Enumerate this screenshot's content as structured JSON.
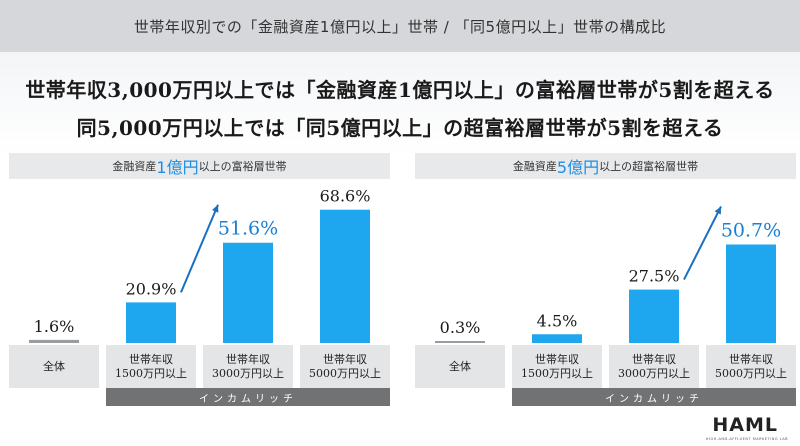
{
  "header": {
    "title": "世帯年収別での「金融資産1億円以上」世帯 / 「同5億円以上」世帯の構成比"
  },
  "headline": {
    "line1": "世帯年収3,000万円以上では「金融資産1億円以上」の富裕層世帯が5割を超える",
    "line2": "同5,000万円以上では「同5億円以上」の超富裕層世帯が5割を超える"
  },
  "panels": [
    {
      "title_pre": "金融資産",
      "title_highlight": "1億円",
      "title_post": "以上の富裕層世帯",
      "income_label": "インカムリッチ"
    },
    {
      "title_pre": "金融資産",
      "title_highlight": "5億円",
      "title_post": "以上の超富裕層世帯",
      "income_label": "インカムリッチ"
    }
  ],
  "categories": [
    {
      "line1": "全体",
      "line2": ""
    },
    {
      "line1": "世帯年収",
      "line2": "1500万円以上"
    },
    {
      "line1": "世帯年収",
      "line2": "3000万円以上"
    },
    {
      "line1": "世帯年収",
      "line2": "5000万円以上"
    }
  ],
  "chart_data": [
    {
      "type": "bar",
      "title": "金融資産1億円以上の富裕層世帯",
      "categories": [
        "全体",
        "世帯年収1500万円以上",
        "世帯年収3000万円以上",
        "世帯年収5000万円以上"
      ],
      "values": [
        1.6,
        20.9,
        51.6,
        68.6
      ],
      "labels": [
        "1.6%",
        "20.9%",
        "51.6%",
        "68.6%"
      ],
      "highlight_index": 2,
      "ylim": [
        0,
        70
      ]
    },
    {
      "type": "bar",
      "title": "金融資産5億円以上の超富裕層世帯",
      "categories": [
        "全体",
        "世帯年収1500万円以上",
        "世帯年収3000万円以上",
        "世帯年収5000万円以上"
      ],
      "values": [
        0.3,
        4.5,
        27.5,
        50.7
      ],
      "labels": [
        "0.3%",
        "4.5%",
        "27.5%",
        "50.7%"
      ],
      "highlight_index": 3,
      "ylim": [
        0,
        70
      ]
    }
  ],
  "colors": {
    "bar": "#1ea7ee",
    "bar_base": "#9a9c9f",
    "highlight": "#1a7fd4",
    "arrow": "#1a6fc0"
  },
  "logo": {
    "name": "HAML",
    "sub": "HIGH-AND-AFFLUENT MARKETING LAB"
  }
}
